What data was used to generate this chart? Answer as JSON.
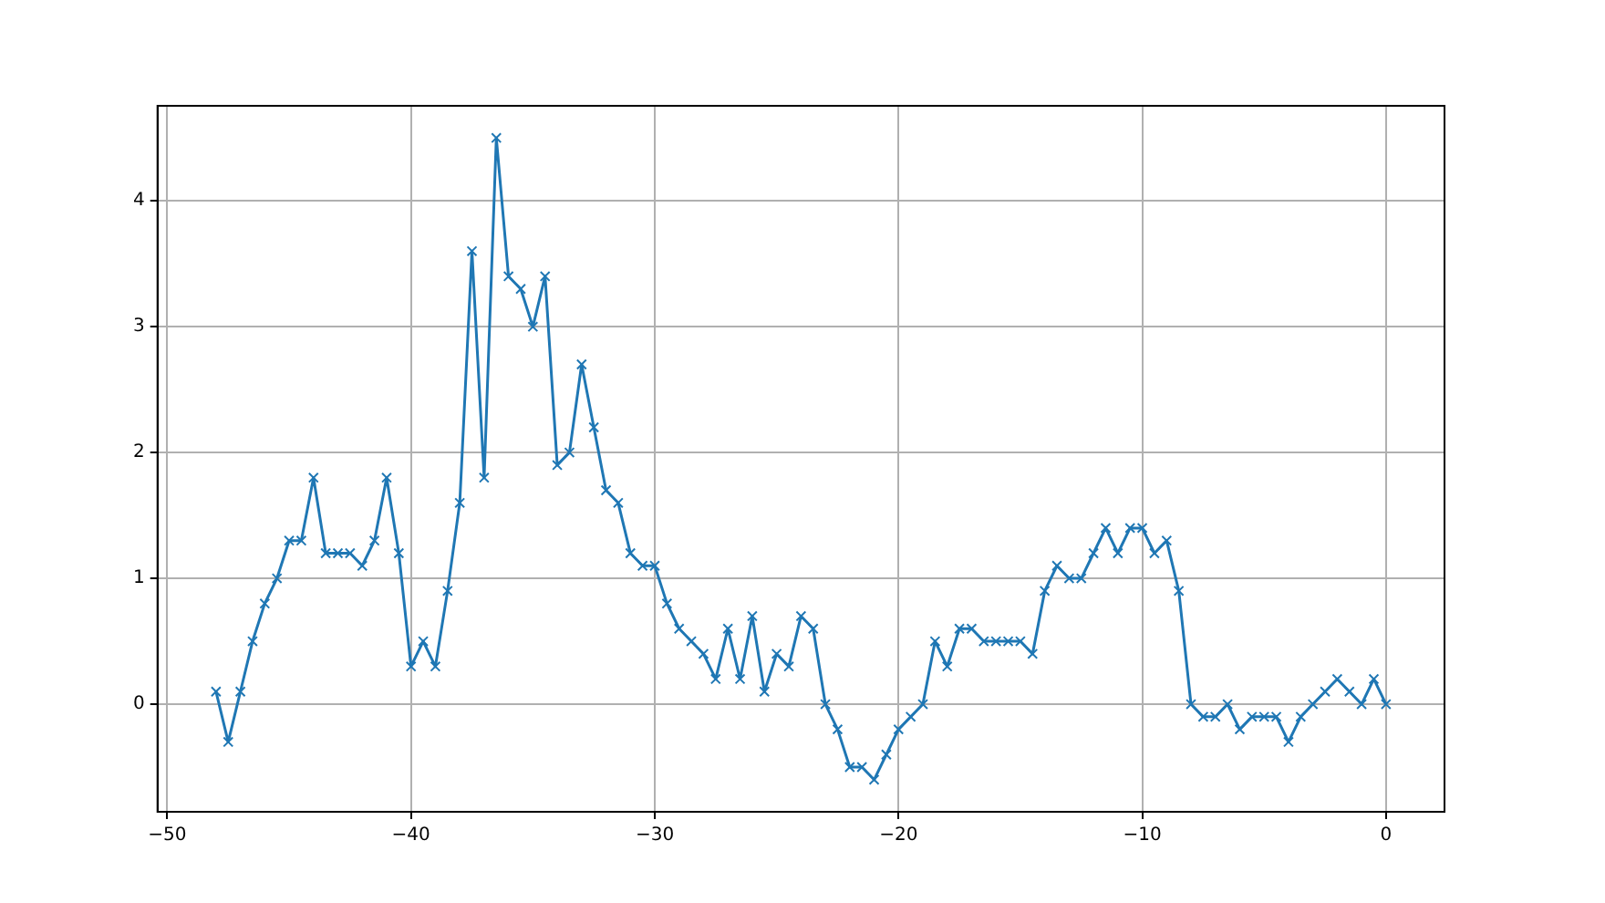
{
  "chart_data": {
    "type": "line",
    "x": [
      -48,
      -47.5,
      -47,
      -46.5,
      -46,
      -45.5,
      -45,
      -44.5,
      -44,
      -43.5,
      -43,
      -42.5,
      -42,
      -41.5,
      -41,
      -40.5,
      -40,
      -39.5,
      -39,
      -38.5,
      -38,
      -37.5,
      -37,
      -36.5,
      -36,
      -35.5,
      -35,
      -34.5,
      -34,
      -33.5,
      -33,
      -32.5,
      -32,
      -31.5,
      -31,
      -30.5,
      -30,
      -29.5,
      -29,
      -28.5,
      -28,
      -27.5,
      -27,
      -26.5,
      -26,
      -25.5,
      -25,
      -24.5,
      -24,
      -23.5,
      -23,
      -22.5,
      -22,
      -21.5,
      -21,
      -20.5,
      -20,
      -19.5,
      -19,
      -18.5,
      -18,
      -17.5,
      -17,
      -16.5,
      -16,
      -15.5,
      -15,
      -14.5,
      -14,
      -13.5,
      -13,
      -12.5,
      -12,
      -11.5,
      -11,
      -10.5,
      -10,
      -9.5,
      -9,
      -8.5,
      -8,
      -7.5,
      -7,
      -6.5,
      -6,
      -5.5,
      -5,
      -4.5,
      -4,
      -3.5,
      -3,
      -2.5,
      -2,
      -1.5,
      -1,
      -0.5,
      0
    ],
    "series": [
      {
        "color": "#1f77b4",
        "values": [
          0.1,
          -0.3,
          0.1,
          0.5,
          0.8,
          1.0,
          1.3,
          1.3,
          1.8,
          1.2,
          1.2,
          1.2,
          1.1,
          1.3,
          1.8,
          1.2,
          0.3,
          0.5,
          0.3,
          0.9,
          1.6,
          3.6,
          1.8,
          4.5,
          3.4,
          3.3,
          3.0,
          3.4,
          1.9,
          2.0,
          2.7,
          2.2,
          1.7,
          1.6,
          1.2,
          1.1,
          1.1,
          0.8,
          0.6,
          0.5,
          0.4,
          0.2,
          0.6,
          0.2,
          0.7,
          0.1,
          0.4,
          0.3,
          0.7,
          0.6,
          0.0,
          -0.2,
          -0.5,
          -0.5,
          -0.6,
          -0.4,
          -0.2,
          -0.1,
          0.0,
          0.5,
          0.3,
          0.6,
          0.6,
          0.5,
          0.5,
          0.5,
          0.5,
          0.4,
          0.9,
          1.1,
          1.0,
          1.0,
          1.2,
          1.4,
          1.2,
          1.4,
          1.4,
          1.2,
          1.3,
          0.9,
          0.0,
          -0.1,
          -0.1,
          0.0,
          -0.2,
          -0.1,
          -0.1,
          -0.1,
          -0.3,
          -0.1,
          0.0,
          0.1,
          0.2,
          0.1,
          0.0,
          0.2,
          0.0
        ]
      }
    ],
    "xlim": [
      -50.4,
      2.4
    ],
    "xticks": [
      -50,
      -40,
      -30,
      -20,
      -10,
      0
    ],
    "ylim": [
      -0.855,
      4.755
    ],
    "yticks": [
      0,
      1,
      2,
      3,
      4
    ],
    "grid": true,
    "marker": "cross",
    "line_style": "solid"
  }
}
